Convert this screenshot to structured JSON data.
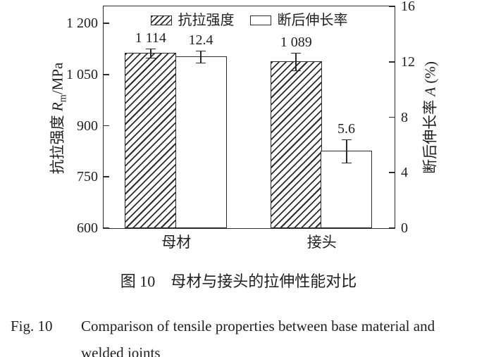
{
  "figure": {
    "captions": {
      "zh": "图 10　母材与接头的拉伸性能对比",
      "en_prefix": "Fig. 10",
      "en_line1": "Comparison of tensile properties between base material and",
      "en_line2": "welded joints"
    }
  },
  "colors": {
    "ink": "#2b2b2b",
    "bar_fill": "#ffffff",
    "background": "#ffffff"
  },
  "chart_data": {
    "type": "bar",
    "categories": [
      "母材",
      "接头"
    ],
    "series": [
      {
        "key": "tensile-strength",
        "name": "抗拉强度",
        "axis": "left_axis",
        "style": "hatched",
        "values": [
          1114,
          1089
        ],
        "errors": [
          12,
          25
        ],
        "value_labels": [
          "1 114",
          "1 089"
        ]
      },
      {
        "key": "elongation",
        "name": "断后伸长率",
        "axis": "right_axis",
        "style": "plain",
        "values": [
          12.4,
          5.6
        ],
        "errors": [
          0.4,
          0.8
        ],
        "value_labels": [
          "12.4",
          "5.6"
        ]
      }
    ],
    "left_axis": {
      "title_cn": "抗拉强度 ",
      "title_var": "R",
      "title_sub": "m",
      "title_rest": "/MPa",
      "min": 600,
      "max": 1250,
      "tick_values": [
        600,
        750,
        900,
        1050,
        1200
      ],
      "tick_labels": [
        "600",
        "750",
        "900",
        "1 050",
        "1 200"
      ]
    },
    "right_axis": {
      "title_cn": "断后伸长率 ",
      "title_var": "A",
      "title_sub": "",
      "title_rest": " (%)",
      "min": 0,
      "max": 16,
      "tick_values": [
        0,
        4,
        8,
        12,
        16
      ],
      "tick_labels": [
        "0",
        "4",
        "8",
        "12",
        "16"
      ]
    },
    "legend": {
      "position": "top-center",
      "items": [
        {
          "label": "抗拉强度",
          "style": "hatched"
        },
        {
          "label": "断后伸长率",
          "style": "plain"
        }
      ]
    },
    "grid": false,
    "error_bars": true
  }
}
